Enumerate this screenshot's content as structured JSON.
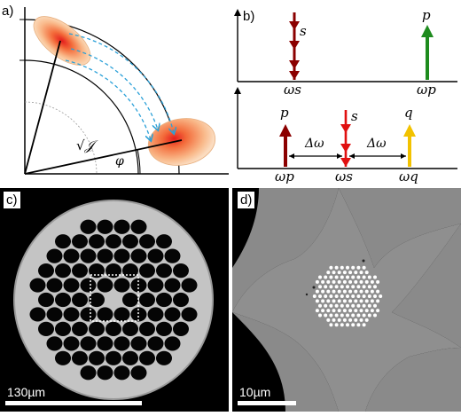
{
  "figure": {
    "panel_a": {
      "label": "a)",
      "radius_label": "√𝒥",
      "angle_label": "φ"
    },
    "panel_b": {
      "label": "b)",
      "top": {
        "signal_label": "s",
        "pump_label": "p",
        "omega_s": "ωs",
        "omega_p": "ωp"
      },
      "bottom": {
        "pump_label": "p",
        "signal_label": "s",
        "idler_label": "q",
        "delta_left": "Δω",
        "delta_right": "Δω",
        "omega_p": "ωp",
        "omega_s": "ωs",
        "omega_q": "ωq"
      },
      "colors": {
        "signal_dark": "#8b0000",
        "pump_green": "#1e8b1e",
        "signal_red": "#e01010",
        "idler_yellow": "#f2c200"
      }
    },
    "panel_c": {
      "label": "c)",
      "scale_text": "130µm"
    },
    "panel_d": {
      "label": "d)",
      "scale_text": "10µm"
    }
  }
}
